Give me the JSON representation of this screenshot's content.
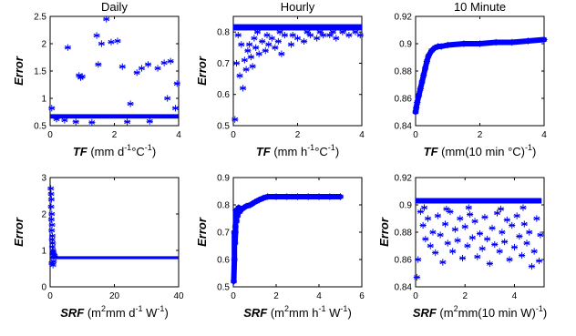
{
  "marker_color": "#0000ff",
  "marker": "asterisk",
  "chart_data": [
    {
      "id": "daily-tf",
      "type": "scatter",
      "title": "Daily",
      "ylabel": "Error",
      "xlabel_parts": [
        {
          "t": "TF",
          "i": true
        },
        {
          "t": " (mm d"
        },
        {
          "t": "-1",
          "sup": true
        },
        {
          "t": "°C"
        },
        {
          "t": "-1",
          "sup": true
        },
        {
          "t": ")"
        }
      ],
      "xlim": [
        0,
        4
      ],
      "ylim": [
        0.5,
        2.5
      ],
      "xticks": [
        0,
        2,
        4
      ],
      "xtick_labels": [
        "0",
        "2",
        "4"
      ],
      "yticks": [
        0.5,
        1,
        1.5,
        2,
        2.5
      ],
      "ytick_labels": [
        "0.5",
        "1",
        "1.5",
        "2",
        "2.5"
      ],
      "bands": [
        {
          "x0": 0,
          "x1": 4,
          "y0": 0.63,
          "y1": 0.71
        }
      ],
      "points": [
        [
          0.05,
          0.82
        ],
        [
          0.2,
          0.62
        ],
        [
          0.45,
          0.6
        ],
        [
          0.55,
          1.93
        ],
        [
          0.9,
          1.42
        ],
        [
          0.95,
          1.38
        ],
        [
          1.0,
          1.4
        ],
        [
          1.45,
          2.15
        ],
        [
          1.6,
          2.0
        ],
        [
          1.75,
          2.45
        ],
        [
          1.9,
          2.03
        ],
        [
          1.5,
          1.62
        ],
        [
          2.1,
          2.05
        ],
        [
          2.25,
          1.58
        ],
        [
          2.5,
          0.9
        ],
        [
          2.7,
          1.47
        ],
        [
          2.85,
          1.55
        ],
        [
          3.05,
          1.62
        ],
        [
          3.35,
          1.55
        ],
        [
          3.55,
          1.65
        ],
        [
          3.65,
          1.0
        ],
        [
          3.75,
          1.68
        ],
        [
          3.95,
          1.27
        ],
        [
          3.9,
          0.82
        ],
        [
          3.1,
          0.58
        ],
        [
          2.4,
          0.57
        ],
        [
          1.3,
          0.56
        ],
        [
          0.8,
          0.57
        ]
      ]
    },
    {
      "id": "hourly-tf",
      "type": "scatter",
      "title": "Hourly",
      "ylabel": "Error",
      "xlabel_parts": [
        {
          "t": "TF",
          "i": true
        },
        {
          "t": " (mm h"
        },
        {
          "t": "-1",
          "sup": true
        },
        {
          "t": "°C"
        },
        {
          "t": "-1",
          "sup": true
        },
        {
          "t": ")"
        }
      ],
      "xlim": [
        0,
        4
      ],
      "ylim": [
        0.5,
        0.85
      ],
      "xticks": [
        0,
        2,
        4
      ],
      "xtick_labels": [
        "0",
        "2",
        "4"
      ],
      "yticks": [
        0.5,
        0.6,
        0.7,
        0.8
      ],
      "ytick_labels": [
        "0.5",
        "0.6",
        "0.7",
        "0.8"
      ],
      "bands": [
        {
          "x0": 0,
          "x1": 4,
          "y0": 0.805,
          "y1": 0.825
        }
      ],
      "points": [
        [
          0.05,
          0.52
        ],
        [
          0.1,
          0.7
        ],
        [
          0.2,
          0.66
        ],
        [
          0.3,
          0.62
        ],
        [
          0.35,
          0.71
        ],
        [
          0.4,
          0.68
        ],
        [
          0.45,
          0.74
        ],
        [
          0.5,
          0.76
        ],
        [
          0.55,
          0.72
        ],
        [
          0.6,
          0.69
        ],
        [
          0.7,
          0.75
        ],
        [
          0.8,
          0.73
        ],
        [
          0.9,
          0.77
        ],
        [
          1.0,
          0.74
        ],
        [
          1.1,
          0.76
        ],
        [
          1.2,
          0.78
        ],
        [
          1.3,
          0.75
        ],
        [
          1.4,
          0.77
        ],
        [
          1.5,
          0.73
        ],
        [
          1.6,
          0.79
        ],
        [
          1.8,
          0.76
        ],
        [
          2.0,
          0.78
        ],
        [
          2.2,
          0.77
        ],
        [
          2.4,
          0.79
        ],
        [
          2.6,
          0.78
        ],
        [
          2.8,
          0.79
        ],
        [
          3.0,
          0.79
        ],
        [
          3.2,
          0.78
        ],
        [
          3.4,
          0.8
        ],
        [
          3.6,
          0.79
        ],
        [
          3.8,
          0.8
        ],
        [
          3.95,
          0.79
        ],
        [
          0.25,
          0.76
        ],
        [
          0.65,
          0.78
        ],
        [
          1.05,
          0.79
        ],
        [
          1.45,
          0.8
        ],
        [
          1.85,
          0.79
        ],
        [
          2.3,
          0.8
        ],
        [
          2.7,
          0.8
        ],
        [
          3.1,
          0.8
        ],
        [
          3.5,
          0.81
        ],
        [
          0.15,
          0.79
        ],
        [
          0.75,
          0.8
        ]
      ]
    },
    {
      "id": "tenmin-tf",
      "type": "line",
      "title": "10 Minute",
      "ylabel": "",
      "xlabel_parts": [
        {
          "t": "TF",
          "i": true
        },
        {
          "t": " (mm(10 min °C)"
        },
        {
          "t": "-1",
          "sup": true
        },
        {
          "t": ")"
        }
      ],
      "xlim": [
        0,
        4
      ],
      "ylim": [
        0.84,
        0.92
      ],
      "xticks": [
        0,
        2,
        4
      ],
      "xtick_labels": [
        "0",
        "2",
        "4"
      ],
      "yticks": [
        0.84,
        0.86,
        0.88,
        0.9,
        0.92
      ],
      "ytick_labels": [
        "0.84",
        "0.86",
        "0.88",
        "0.9",
        "0.92"
      ],
      "bands": [],
      "points": [
        [
          0,
          0.85
        ],
        [
          0.02,
          0.853
        ],
        [
          0.05,
          0.857
        ],
        [
          0.1,
          0.862
        ],
        [
          0.15,
          0.867
        ],
        [
          0.2,
          0.872
        ],
        [
          0.25,
          0.877
        ],
        [
          0.3,
          0.882
        ],
        [
          0.35,
          0.887
        ],
        [
          0.4,
          0.891
        ],
        [
          0.5,
          0.895
        ],
        [
          0.6,
          0.897
        ],
        [
          0.7,
          0.898
        ],
        [
          0.8,
          0.898
        ],
        [
          1.0,
          0.899
        ],
        [
          1.5,
          0.9
        ],
        [
          2.0,
          0.9
        ],
        [
          2.5,
          0.901
        ],
        [
          3.0,
          0.901
        ],
        [
          3.5,
          0.902
        ],
        [
          4.0,
          0.903
        ]
      ]
    },
    {
      "id": "daily-srf",
      "type": "scatter",
      "title": "",
      "ylabel": "Error",
      "xlabel_parts": [
        {
          "t": "SRF",
          "i": true
        },
        {
          "t": " (m"
        },
        {
          "t": "2",
          "sup": true
        },
        {
          "t": "mm d"
        },
        {
          "t": "-1",
          "sup": true
        },
        {
          "t": " W"
        },
        {
          "t": "-1",
          "sup": true
        },
        {
          "t": ")"
        }
      ],
      "xlim": [
        0,
        40
      ],
      "ylim": [
        0,
        3
      ],
      "xticks": [
        0,
        20,
        40
      ],
      "xtick_labels": [
        "0",
        "20",
        "40"
      ],
      "yticks": [
        0,
        1,
        2,
        3
      ],
      "ytick_labels": [
        "0",
        "1",
        "2",
        "3"
      ],
      "bands": [
        {
          "x0": 0,
          "x1": 40,
          "y0": 0.76,
          "y1": 0.84
        }
      ],
      "points": [
        [
          0.2,
          2.7
        ],
        [
          0.3,
          2.55
        ],
        [
          0.4,
          2.4
        ],
        [
          0.3,
          2.2
        ],
        [
          0.5,
          2.0
        ],
        [
          0.4,
          1.85
        ],
        [
          0.6,
          1.7
        ],
        [
          0.5,
          1.55
        ],
        [
          0.7,
          1.4
        ],
        [
          0.6,
          1.3
        ],
        [
          0.8,
          1.2
        ],
        [
          0.7,
          1.1
        ],
        [
          0.9,
          1.0
        ],
        [
          1.0,
          0.95
        ],
        [
          0.8,
          0.9
        ],
        [
          1.1,
          0.7
        ],
        [
          0.5,
          0.65
        ],
        [
          0.9,
          0.6
        ],
        [
          1.2,
          0.88
        ],
        [
          1.4,
          0.85
        ]
      ]
    },
    {
      "id": "hourly-srf",
      "type": "line",
      "title": "",
      "ylabel": "Error",
      "xlabel_parts": [
        {
          "t": "SRF",
          "i": true
        },
        {
          "t": " (m"
        },
        {
          "t": "2",
          "sup": true
        },
        {
          "t": "mm h"
        },
        {
          "t": "-1",
          "sup": true
        },
        {
          "t": " W"
        },
        {
          "t": "-1",
          "sup": true
        },
        {
          "t": ")"
        }
      ],
      "xlim": [
        0,
        6
      ],
      "ylim": [
        0.5,
        0.9
      ],
      "xticks": [
        0,
        2,
        4,
        6
      ],
      "xtick_labels": [
        "0",
        "2",
        "4",
        "6"
      ],
      "yticks": [
        0.5,
        0.6,
        0.7,
        0.8,
        0.9
      ],
      "ytick_labels": [
        "0.5",
        "0.6",
        "0.7",
        "0.8",
        "0.9"
      ],
      "bands": [],
      "points": [
        [
          0.02,
          0.52
        ],
        [
          0.05,
          0.6
        ],
        [
          0.08,
          0.66
        ],
        [
          0.1,
          0.7
        ],
        [
          0.15,
          0.74
        ],
        [
          0.2,
          0.76
        ],
        [
          0.3,
          0.775
        ],
        [
          0.4,
          0.785
        ],
        [
          0.6,
          0.795
        ],
        [
          0.8,
          0.8
        ],
        [
          1.0,
          0.81
        ],
        [
          1.2,
          0.818
        ],
        [
          1.4,
          0.825
        ],
        [
          1.6,
          0.83
        ],
        [
          2.0,
          0.83
        ],
        [
          2.5,
          0.83
        ],
        [
          3.0,
          0.83
        ],
        [
          3.5,
          0.83
        ],
        [
          4.0,
          0.83
        ],
        [
          4.5,
          0.83
        ],
        [
          5.0,
          0.83
        ],
        [
          0.05,
          0.7
        ],
        [
          0.1,
          0.72
        ],
        [
          0.15,
          0.77
        ],
        [
          0.25,
          0.79
        ],
        [
          0.12,
          0.78
        ]
      ]
    },
    {
      "id": "tenmin-srf",
      "type": "scatter",
      "title": "",
      "ylabel": "Error",
      "xlabel_parts": [
        {
          "t": "SRF",
          "i": true
        },
        {
          "t": " (m"
        },
        {
          "t": "2",
          "sup": true
        },
        {
          "t": "mm(10 min W)"
        },
        {
          "t": "-1",
          "sup": true
        },
        {
          "t": ")"
        }
      ],
      "xlim": [
        0,
        5.2
      ],
      "ylim": [
        0.84,
        0.92
      ],
      "xticks": [
        0,
        2,
        4
      ],
      "xtick_labels": [
        "0",
        "2",
        "4"
      ],
      "yticks": [
        0.84,
        0.86,
        0.88,
        0.9,
        0.92
      ],
      "ytick_labels": [
        "0.84",
        "0.86",
        "0.88",
        "0.9",
        "0.92"
      ],
      "bands": [
        {
          "x0": 0,
          "x1": 5.1,
          "y0": 0.901,
          "y1": 0.905
        }
      ],
      "points": [
        [
          0.05,
          0.847
        ],
        [
          0.1,
          0.86
        ],
        [
          0.2,
          0.895
        ],
        [
          0.3,
          0.885
        ],
        [
          0.4,
          0.875
        ],
        [
          0.5,
          0.89
        ],
        [
          0.6,
          0.87
        ],
        [
          0.7,
          0.88
        ],
        [
          0.8,
          0.865
        ],
        [
          0.9,
          0.892
        ],
        [
          1.0,
          0.878
        ],
        [
          1.1,
          0.858
        ],
        [
          1.2,
          0.886
        ],
        [
          1.3,
          0.872
        ],
        [
          1.4,
          0.895
        ],
        [
          1.5,
          0.866
        ],
        [
          1.6,
          0.882
        ],
        [
          1.7,
          0.874
        ],
        [
          1.8,
          0.89
        ],
        [
          1.9,
          0.861
        ],
        [
          2.0,
          0.884
        ],
        [
          2.1,
          0.87
        ],
        [
          2.2,
          0.893
        ],
        [
          2.3,
          0.876
        ],
        [
          2.4,
          0.888
        ],
        [
          2.5,
          0.862
        ],
        [
          2.6,
          0.879
        ],
        [
          2.7,
          0.868
        ],
        [
          2.8,
          0.891
        ],
        [
          2.9,
          0.875
        ],
        [
          3.0,
          0.857
        ],
        [
          3.1,
          0.883
        ],
        [
          3.2,
          0.871
        ],
        [
          3.3,
          0.894
        ],
        [
          3.4,
          0.866
        ],
        [
          3.5,
          0.88
        ],
        [
          3.6,
          0.873
        ],
        [
          3.7,
          0.889
        ],
        [
          3.8,
          0.86
        ],
        [
          3.9,
          0.885
        ],
        [
          4.0,
          0.869
        ],
        [
          4.1,
          0.892
        ],
        [
          4.2,
          0.877
        ],
        [
          4.3,
          0.863
        ],
        [
          4.4,
          0.886
        ],
        [
          4.5,
          0.872
        ],
        [
          4.6,
          0.88
        ],
        [
          4.7,
          0.855
        ],
        [
          4.8,
          0.866
        ],
        [
          4.9,
          0.89
        ],
        [
          5.0,
          0.859
        ],
        [
          5.05,
          0.878
        ],
        [
          0.35,
          0.898
        ],
        [
          1.25,
          0.897
        ],
        [
          2.15,
          0.898
        ],
        [
          3.45,
          0.897
        ],
        [
          4.35,
          0.898
        ]
      ]
    }
  ]
}
